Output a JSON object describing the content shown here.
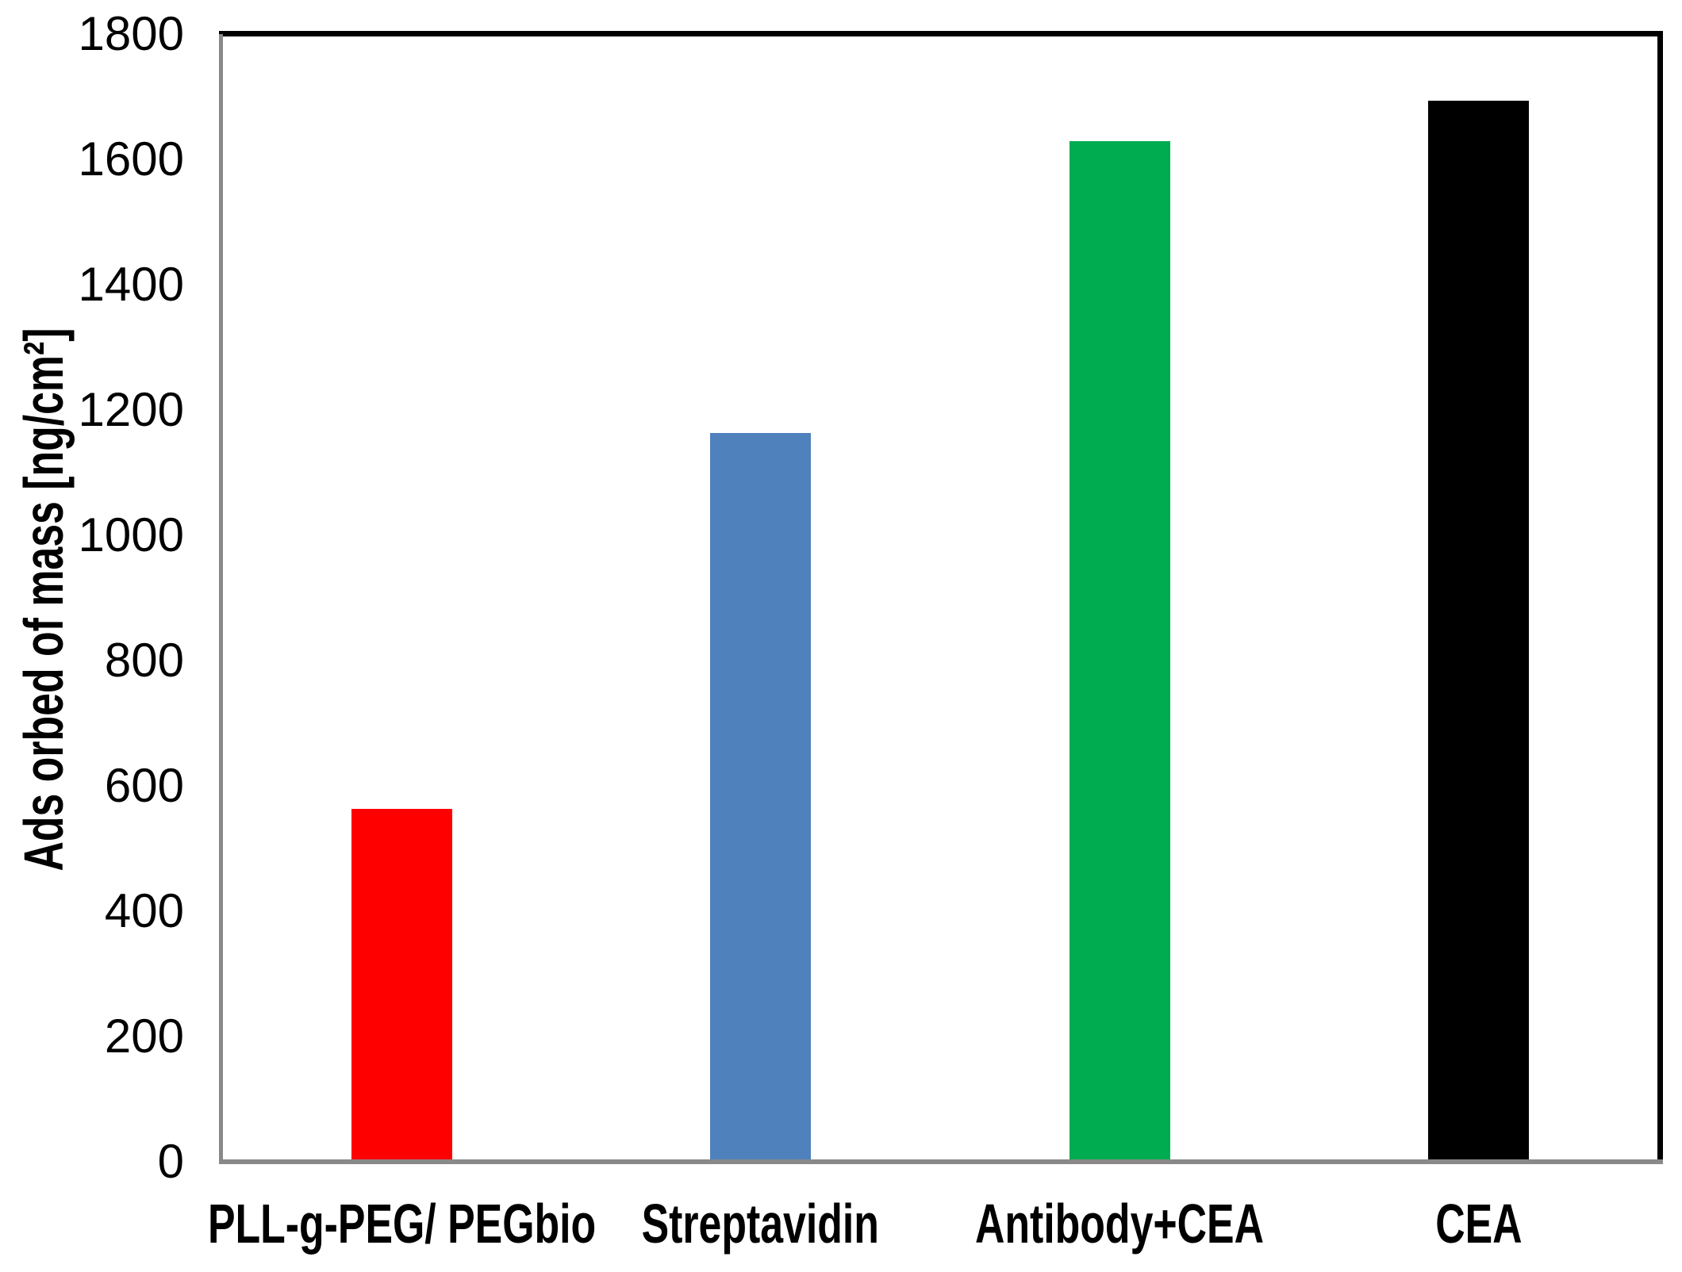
{
  "chart_data": {
    "type": "bar",
    "title": "",
    "categories": [
      "PLL-g-PEG/ PEGbio",
      "Streptavidin",
      "Antibody+CEA",
      "CEA"
    ],
    "values": [
      560,
      1160,
      1625,
      1690
    ],
    "bar_colors": [
      "#FF0000",
      "#4F81BD",
      "#00AC50",
      "#000000"
    ],
    "xlabel": "",
    "ylabel": "Ads orbed of mass [ng/cm²]",
    "ylim": [
      0,
      1800
    ],
    "yticks": [
      0,
      200,
      400,
      600,
      800,
      1000,
      1200,
      1400,
      1600,
      1800
    ],
    "grid": "off",
    "legend": "none",
    "axis_color": "#898989",
    "frame_border_color": "#000000",
    "tick_label_color": "#000000"
  }
}
